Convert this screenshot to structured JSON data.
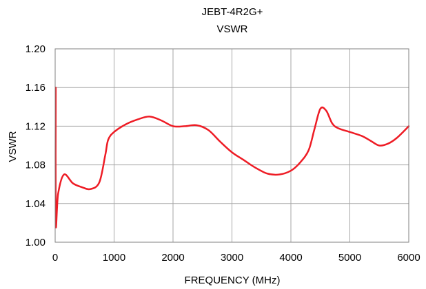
{
  "chart_data": {
    "type": "line",
    "title": "JEBT-4R2G+",
    "subtitle": "VSWR",
    "xlabel": "FREQUENCY (MHz)",
    "ylabel": "VSWR",
    "xlim": [
      0,
      6000
    ],
    "ylim": [
      1.0,
      1.2
    ],
    "x_ticks": [
      "0",
      "1000",
      "2000",
      "3000",
      "4000",
      "5000",
      "6000"
    ],
    "y_ticks": [
      "1.00",
      "1.04",
      "1.08",
      "1.12",
      "1.16",
      "1.20"
    ],
    "grid": true,
    "legend": "none",
    "series": [
      {
        "color": "#ee1c25",
        "points": [
          [
            10,
            1.16
          ],
          [
            10,
            1.02
          ],
          [
            50,
            1.05
          ],
          [
            150,
            1.07
          ],
          [
            300,
            1.061
          ],
          [
            450,
            1.057
          ],
          [
            600,
            1.055
          ],
          [
            750,
            1.062
          ],
          [
            850,
            1.09
          ],
          [
            900,
            1.106
          ],
          [
            1000,
            1.114
          ],
          [
            1200,
            1.122
          ],
          [
            1400,
            1.127
          ],
          [
            1600,
            1.13
          ],
          [
            1800,
            1.126
          ],
          [
            2000,
            1.12
          ],
          [
            2200,
            1.12
          ],
          [
            2400,
            1.121
          ],
          [
            2600,
            1.116
          ],
          [
            2800,
            1.104
          ],
          [
            3000,
            1.093
          ],
          [
            3200,
            1.085
          ],
          [
            3400,
            1.077
          ],
          [
            3600,
            1.071
          ],
          [
            3800,
            1.07
          ],
          [
            4000,
            1.074
          ],
          [
            4150,
            1.082
          ],
          [
            4300,
            1.095
          ],
          [
            4400,
            1.117
          ],
          [
            4500,
            1.138
          ],
          [
            4600,
            1.136
          ],
          [
            4700,
            1.123
          ],
          [
            4800,
            1.118
          ],
          [
            5000,
            1.114
          ],
          [
            5200,
            1.11
          ],
          [
            5350,
            1.105
          ],
          [
            5500,
            1.1
          ],
          [
            5650,
            1.102
          ],
          [
            5800,
            1.108
          ],
          [
            6000,
            1.12
          ]
        ]
      }
    ]
  }
}
